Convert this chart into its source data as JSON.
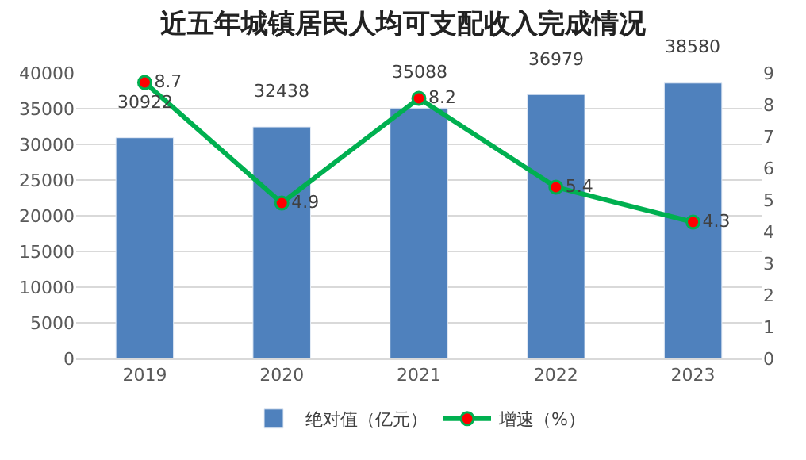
{
  "chart_data": {
    "type": "bar",
    "title": "近五年城镇居民人均可支配收入完成情况",
    "categories": [
      "2019",
      "2020",
      "2021",
      "2022",
      "2023"
    ],
    "series": [
      {
        "name": "绝对值（亿元）",
        "color": "#4f81bd",
        "values": [
          30922,
          32438,
          35088,
          36979,
          38580
        ]
      },
      {
        "name": "增速（%）",
        "type": "line",
        "axis": "y2",
        "color": "#00b050",
        "colors": [
          "#ff0000",
          "#ff0000",
          "#ff0000",
          "#ff0000",
          "#ff0000"
        ],
        "values": [
          8.7,
          4.9,
          8.2,
          5.4,
          4.3
        ]
      }
    ],
    "ylim": [
      0,
      40000
    ],
    "yticks": [
      0,
      5000,
      10000,
      15000,
      20000,
      25000,
      30000,
      35000,
      40000
    ],
    "y2lim": [
      0,
      9
    ],
    "y2ticks": [
      0,
      1,
      2,
      3,
      4,
      5,
      6,
      7,
      8,
      9
    ],
    "grid": "y",
    "legend": "bottom",
    "marker": "circle",
    "data_labels": true
  }
}
